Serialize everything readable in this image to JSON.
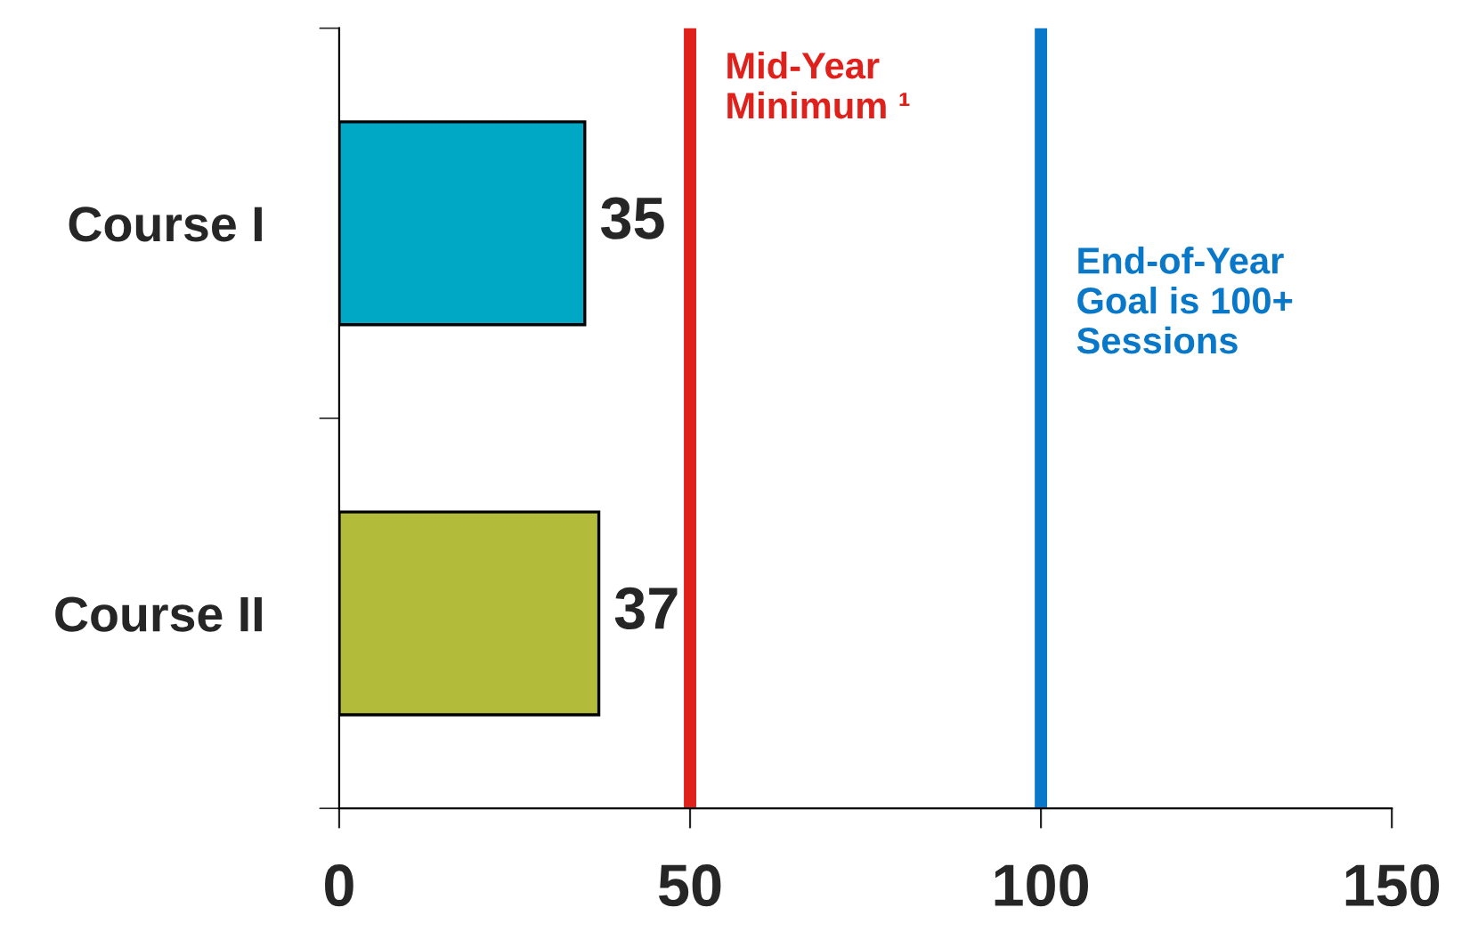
{
  "chart_data": {
    "type": "bar",
    "orientation": "horizontal",
    "categories": [
      "Course I",
      "Course II"
    ],
    "values": [
      35,
      37
    ],
    "colors": [
      "#00a8c6",
      "#b3bb3a"
    ],
    "data_labels": true,
    "xlim": [
      0,
      150
    ],
    "xticks": [
      0,
      50,
      100,
      150
    ],
    "grid": false,
    "ref_lines": [
      {
        "axis": "x",
        "value": 50,
        "label": "Mid-Year\nMinimum ¹",
        "color": "#e0201b"
      },
      {
        "axis": "x",
        "value": 100,
        "label": "End-of-Year\nGoal is 100+\nSessions",
        "color": "#0a78c8"
      }
    ]
  }
}
